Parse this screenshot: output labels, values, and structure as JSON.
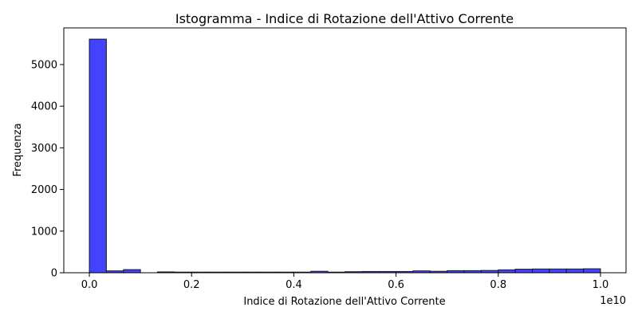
{
  "chart_data": {
    "type": "bar",
    "title": "Istogramma - Indice di Rotazione dell'Attivo Corrente",
    "xlabel": "Indice di Rotazione dell'Attivo Corrente",
    "ylabel": "Frequenza",
    "x_offset_label": "1e10",
    "xlim": [
      -0.05,
      1.05
    ],
    "ylim": [
      0,
      5880
    ],
    "x_ticks": [
      0.0,
      0.2,
      0.4,
      0.6,
      0.8,
      1.0
    ],
    "x_tick_labels": [
      "0.0",
      "0.2",
      "0.4",
      "0.6",
      "0.8",
      "1.0"
    ],
    "y_ticks": [
      0,
      1000,
      2000,
      3000,
      4000,
      5000
    ],
    "y_tick_labels": [
      "0",
      "1000",
      "2000",
      "3000",
      "4000",
      "5000"
    ],
    "bin_width": 0.0333,
    "bin_starts": [
      0.0,
      0.0333,
      0.0667,
      0.1,
      0.1333,
      0.1667,
      0.2,
      0.2333,
      0.2667,
      0.3,
      0.3333,
      0.3667,
      0.4,
      0.4333,
      0.4667,
      0.5,
      0.5333,
      0.5667,
      0.6,
      0.6333,
      0.6667,
      0.7,
      0.7333,
      0.7667,
      0.8,
      0.8333,
      0.8667,
      0.9,
      0.9333,
      0.9667
    ],
    "values": [
      5610,
      45,
      75,
      0,
      20,
      15,
      15,
      15,
      15,
      15,
      15,
      15,
      15,
      35,
      15,
      25,
      30,
      30,
      30,
      45,
      35,
      50,
      50,
      55,
      70,
      85,
      90,
      90,
      90,
      95
    ],
    "bar_color": "#4242ff",
    "edge_color": "#1a1a1a",
    "grid": false
  }
}
